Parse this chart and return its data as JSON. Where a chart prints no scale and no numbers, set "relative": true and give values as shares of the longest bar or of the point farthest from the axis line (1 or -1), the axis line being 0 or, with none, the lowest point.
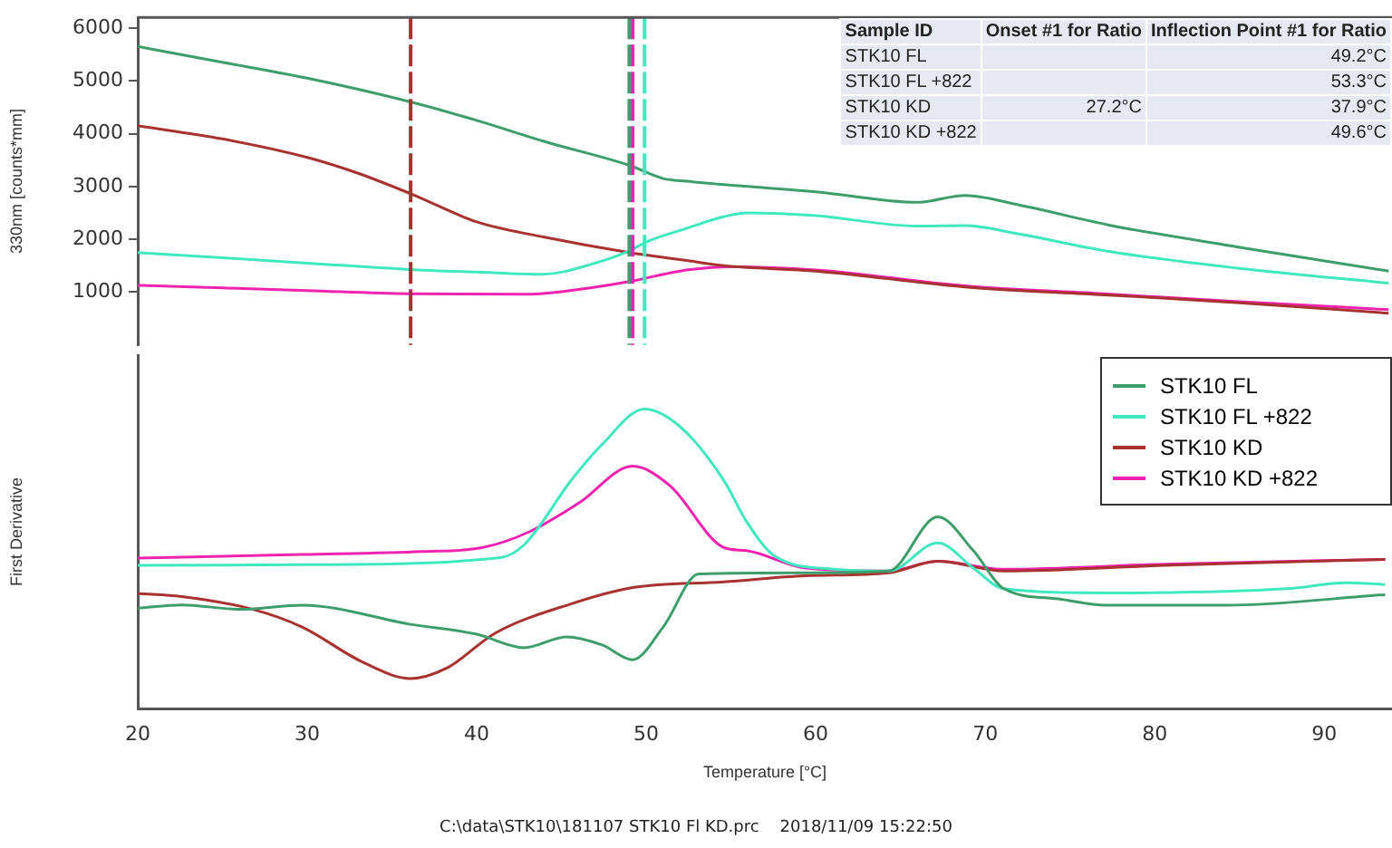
{
  "chart_data": [
    {
      "type": "line",
      "ylabel": "330nm [counts*mm]",
      "xlim": [
        20,
        94
      ],
      "ylim": [
        0,
        6200
      ],
      "yticks": [
        1000,
        2000,
        3000,
        4000,
        5000,
        6000
      ],
      "tick_labels": "y",
      "series": [
        {
          "color": "#3d9e6c",
          "x": [
            20,
            25,
            30,
            36.1,
            40,
            44,
            49,
            51,
            52.4,
            56,
            60,
            66,
            68.8,
            72,
            77.3,
            85,
            93.8
          ],
          "values": [
            5650,
            5350,
            5050,
            4600,
            4250,
            3850,
            3400,
            3150,
            3100,
            3000,
            2900,
            2700,
            2830,
            2650,
            2270,
            1850,
            1400
          ]
        },
        {
          "color": "#40e8c0",
          "x": [
            20,
            25,
            30,
            36,
            40,
            43.9,
            47,
            49,
            50,
            52.4,
            54.6,
            55.9,
            60,
            66,
            68.8,
            72,
            77.3,
            85,
            93.8
          ],
          "values": [
            1750,
            1650,
            1550,
            1430,
            1380,
            1340,
            1550,
            1780,
            1950,
            2210,
            2430,
            2500,
            2450,
            2250,
            2260,
            2100,
            1770,
            1450,
            1170
          ]
        },
        {
          "color": "#a8322f",
          "x": [
            20,
            25,
            30,
            33,
            36.2,
            40,
            44,
            49,
            52.4,
            54.6,
            60,
            68.8,
            77,
            85,
            93.8
          ],
          "values": [
            4150,
            3900,
            3550,
            3250,
            2850,
            2330,
            2040,
            1750,
            1600,
            1500,
            1400,
            1100,
            950,
            800,
            600
          ]
        },
        {
          "color": "#f023b0",
          "x": [
            20,
            25,
            30,
            36,
            43,
            46,
            49,
            52,
            55,
            60,
            68.8,
            77,
            85,
            93.8
          ],
          "values": [
            1130,
            1080,
            1030,
            970,
            960,
            1050,
            1200,
            1400,
            1480,
            1420,
            1120,
            970,
            820,
            670
          ]
        }
      ],
      "ref_lines": [
        {
          "axis": "x",
          "value": 36.1,
          "color": "#a8322f",
          "line_style": "dashed"
        },
        {
          "axis": "x",
          "value": 49.0,
          "color": "#3d9e6c",
          "line_style": "dashed"
        },
        {
          "axis": "x",
          "value": 49.2,
          "color": "#f023b0",
          "line_style": "dashed"
        },
        {
          "axis": "x",
          "value": 49.9,
          "color": "#40e8c0",
          "line_style": "dashed"
        }
      ],
      "annotations": [
        "Sample ID",
        "Onset #1 for Ratio",
        "Inflection Point #1 for Ratio",
        "STK10 FL",
        null,
        "49.2°C",
        "STK10 FL +822",
        null,
        "53.3°C",
        "STK10 KD",
        "27.2°C",
        "37.9°C",
        "STK10 KD +822",
        null,
        "49.6°C"
      ]
    },
    {
      "type": "line",
      "relative": true,
      "ylabel": "First Derivative",
      "xlabel": "Temperature [°C]",
      "xlim": [
        20,
        94
      ],
      "xticks": [
        20,
        30,
        40,
        50,
        60,
        70,
        80,
        90
      ],
      "tick_labels": "x",
      "legend": "top right",
      "series": [
        {
          "name": "STK10 FL",
          "color": "#3d9e6c",
          "x": [
            20,
            22.6,
            26.1,
            29.7,
            36.1,
            40,
            42.8,
            45.3,
            47.4,
            49.2,
            51,
            53.1,
            59.4,
            64.3,
            67.2,
            69.3,
            71.1,
            74.3,
            77.1,
            84.2,
            93.6
          ],
          "values": [
            0.335,
            0.346,
            0.331,
            0.345,
            0.281,
            0.248,
            0.203,
            0.239,
            0.212,
            0.163,
            0.272,
            0.449,
            0.453,
            0.459,
            0.64,
            0.527,
            0.4,
            0.366,
            0.345,
            0.345,
            0.38
          ]
        },
        {
          "name": "STK10 FL +822",
          "color": "#40e8c0",
          "x": [
            20,
            29.7,
            41.4,
            42.8,
            45.6,
            47.4,
            49.9,
            52,
            54.6,
            55.9,
            57.6,
            61.1,
            64.3,
            67.2,
            69.3,
            71.1,
            77.1,
            87.8,
            91.3,
            93.6
          ],
          "values": [
            0.478,
            0.48,
            0.504,
            0.547,
            0.764,
            0.882,
            1,
            0.941,
            0.76,
            0.626,
            0.508,
            0.465,
            0.459,
            0.553,
            0.469,
            0.4,
            0.386,
            0.4,
            0.42,
            0.414
          ]
        },
        {
          "name": "STK10 KD",
          "color": "#a8322f",
          "x": [
            20,
            22.6,
            26.8,
            29.7,
            33.3,
            36.1,
            38.2,
            41.1,
            45.6,
            49.2,
            54.6,
            59.4,
            64.3,
            67.2,
            71.1,
            80.6,
            93.6
          ],
          "values": [
            0.384,
            0.374,
            0.331,
            0.272,
            0.154,
            0.1,
            0.134,
            0.252,
            0.35,
            0.404,
            0.423,
            0.443,
            0.453,
            0.492,
            0.459,
            0.478,
            0.498
          ]
        },
        {
          "name": "STK10 KD +822",
          "color": "#f023b0",
          "x": [
            20,
            29.7,
            36.8,
            40.3,
            43.1,
            46,
            49.2,
            51.4,
            54.6,
            55.9,
            59.4,
            64.3,
            67.2,
            71.1,
            80.6,
            93.6
          ],
          "values": [
            0.502,
            0.514,
            0.524,
            0.537,
            0.59,
            0.685,
            0.809,
            0.744,
            0.537,
            0.527,
            0.469,
            0.459,
            0.492,
            0.465,
            0.482,
            0.498
          ]
        }
      ],
      "annotations": [
        "C:\\data\\STK10\\181107 STK10 Fl KD.prc    2018/11/09 15:22:50"
      ]
    }
  ]
}
